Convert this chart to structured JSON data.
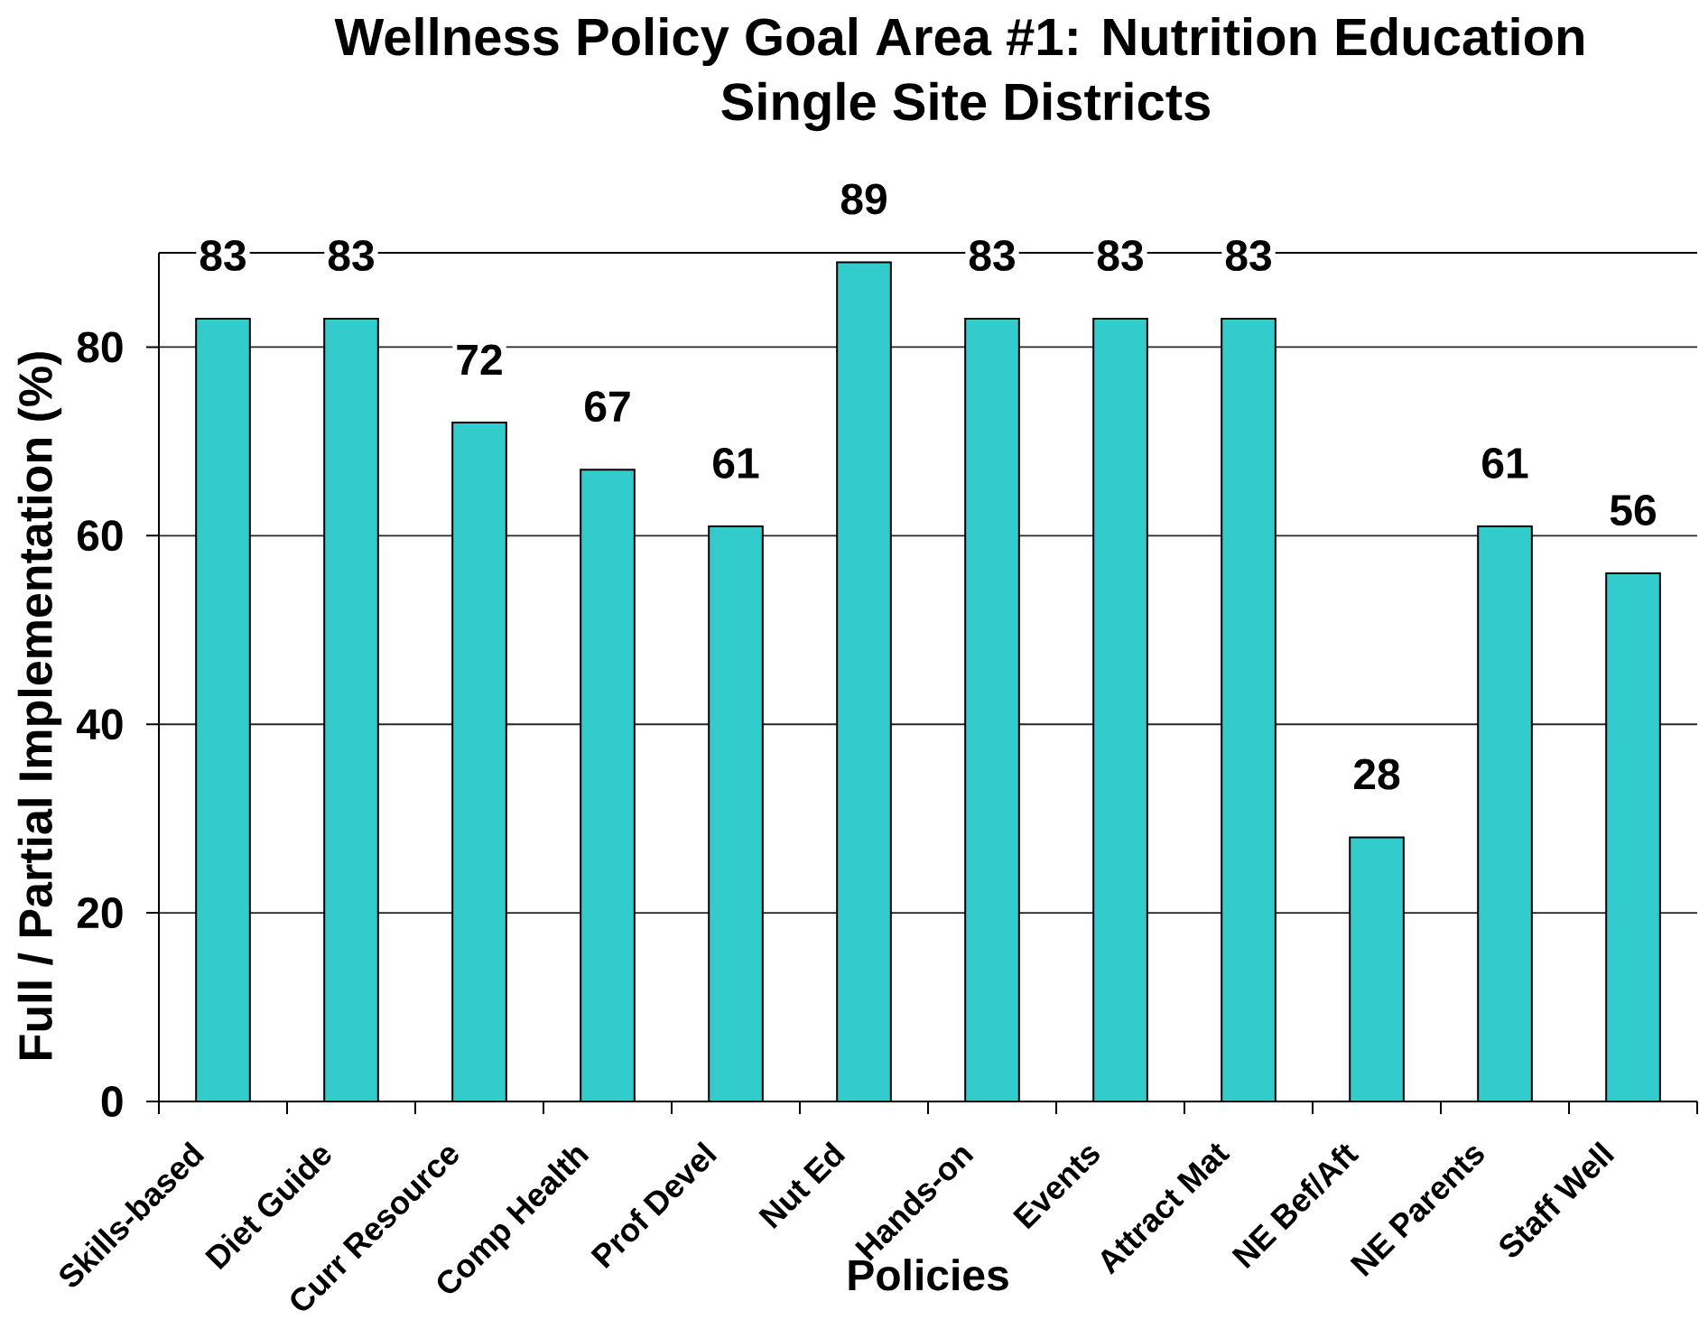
{
  "chart_data": {
    "type": "bar",
    "title": "Wellness Policy Goal Area #1: Nutrition Education",
    "subtitle": "Single Site Districts",
    "xlabel": "Policies",
    "ylabel": "Full / Partial Implementation (%)",
    "categories": [
      "Skills-based",
      "Diet Guide",
      "Curr Resource",
      "Comp Health",
      "Prof Devel",
      "Nut Ed",
      "Hands-on",
      "Events",
      "Attract Mat",
      "NE Bef/Aft",
      "NE Parents",
      "Staff Well"
    ],
    "values": [
      83,
      83,
      72,
      67,
      61,
      89,
      83,
      83,
      83,
      28,
      61,
      56
    ],
    "color": "#33cccc",
    "ylim": [
      0,
      90
    ],
    "yticks": [
      0,
      20,
      40,
      60,
      80
    ],
    "grid": "y",
    "data_labels": true
  }
}
